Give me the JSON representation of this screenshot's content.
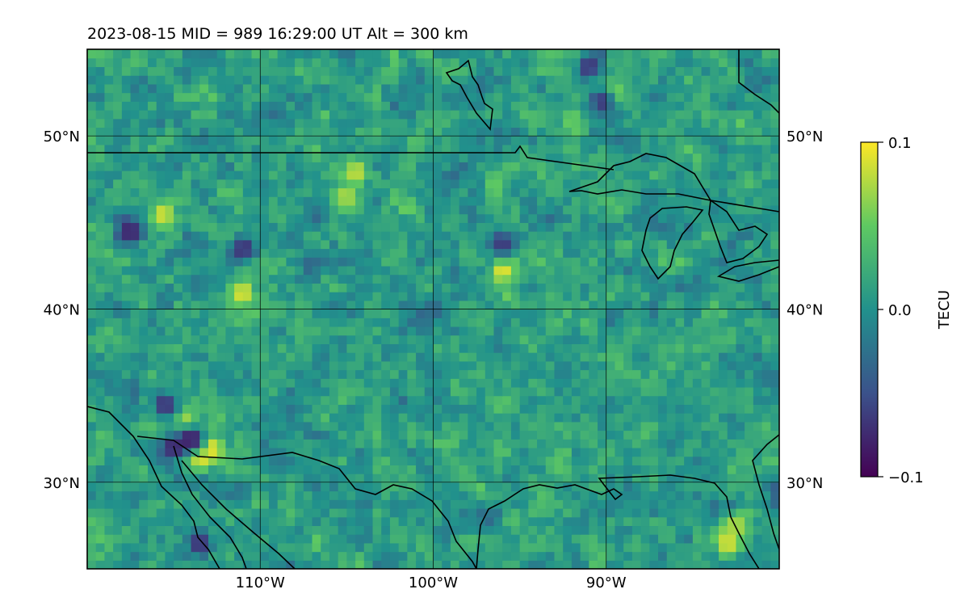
{
  "title": "2023-08-15  MID = 989    16:29:00  UT  Alt = 300 km",
  "chart_data": {
    "type": "heatmap",
    "title": "2023-08-15  MID = 989    16:29:00  UT  Alt = 300 km",
    "projection": "longitude-latitude map with coastlines and national borders",
    "region": "North America: western/central United States, northern Mexico, Great Lakes",
    "lon_range": [
      -120,
      -80
    ],
    "lat_range": [
      25,
      55
    ],
    "x_ticks": [
      -110,
      -100,
      -90
    ],
    "x_tick_labels": [
      "110°W",
      "100°W",
      "90°W"
    ],
    "y_ticks": [
      30,
      40,
      50
    ],
    "y_tick_labels": [
      "30°N",
      "40°N",
      "50°N"
    ],
    "y_labels_both_sides": true,
    "grid": true,
    "colormap": "viridis",
    "colormap_colors": [
      "#440154",
      "#3b528b",
      "#21918c",
      "#5ec962",
      "#fde725"
    ],
    "colorbar": {
      "label": "TECU",
      "ticks": [
        0.1,
        0.0,
        -0.1
      ],
      "tick_labels": [
        "0.1",
        "0.0",
        "−0.1"
      ],
      "vmin": -0.1,
      "vmax": 0.1
    },
    "hotspots": [
      {
        "lon": -113.5,
        "lat": 31.4,
        "value": 0.1
      },
      {
        "lon": -112.8,
        "lat": 32.0,
        "value": 0.1
      },
      {
        "lon": -114.3,
        "lat": 33.6,
        "value": 0.08
      },
      {
        "lon": -104.5,
        "lat": 47.9,
        "value": 0.09
      },
      {
        "lon": -96.0,
        "lat": 42.2,
        "value": 0.1
      },
      {
        "lon": -111.0,
        "lat": 41.0,
        "value": 0.1
      },
      {
        "lon": -115.6,
        "lat": 45.5,
        "value": 0.09
      },
      {
        "lon": -105.0,
        "lat": 46.5,
        "value": 0.08
      },
      {
        "lon": -83.0,
        "lat": 26.5,
        "value": 0.1
      },
      {
        "lon": -82.5,
        "lat": 27.5,
        "value": 0.08
      },
      {
        "lon": -92.0,
        "lat": 51.0,
        "value": 0.06
      },
      {
        "lon": -89.5,
        "lat": 52.5,
        "value": 0.07
      }
    ],
    "coldspots": [
      {
        "lon": -114.0,
        "lat": 32.5,
        "value": -0.1
      },
      {
        "lon": -115.0,
        "lat": 32.0,
        "value": -0.09
      },
      {
        "lon": -117.5,
        "lat": 44.5,
        "value": -0.09
      },
      {
        "lon": -111.0,
        "lat": 43.5,
        "value": -0.08
      },
      {
        "lon": -96.0,
        "lat": 43.8,
        "value": -0.07
      },
      {
        "lon": -91.0,
        "lat": 54.0,
        "value": -0.08
      },
      {
        "lon": -90.2,
        "lat": 52.0,
        "value": -0.07
      },
      {
        "lon": -113.5,
        "lat": 26.5,
        "value": -0.08
      },
      {
        "lon": -115.5,
        "lat": 34.5,
        "value": -0.08
      },
      {
        "lon": -100.0,
        "lat": 40.0,
        "value": -0.04
      }
    ]
  }
}
